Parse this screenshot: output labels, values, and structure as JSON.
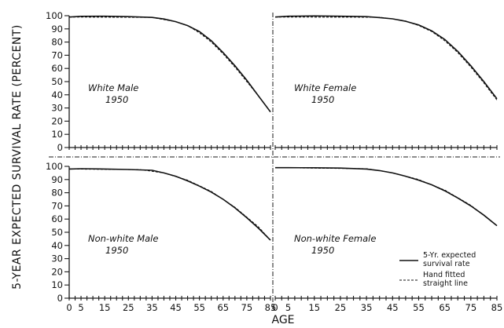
{
  "chart_data": {
    "type": "line",
    "ylabel": "5-YEAR EXPECTED SURVIVAL RATE (PERCENT)",
    "xlabel": "AGE",
    "x_ticks": [
      "0",
      "5",
      "15",
      "25",
      "35",
      "45",
      "55",
      "65",
      "75",
      "85"
    ],
    "y_ticks": [
      "0",
      "10",
      "20",
      "30",
      "40",
      "50",
      "60",
      "70",
      "80",
      "90",
      "100"
    ],
    "xlim": [
      0,
      85
    ],
    "ylim": [
      0,
      100
    ],
    "legend": {
      "placement": "bottom-right of lower-right panel",
      "entries": [
        {
          "label": "5-Yr. expected survival rate",
          "line_1": "5-Yr. expected",
          "line_2": "survival rate",
          "style": "solid"
        },
        {
          "label": "Hand fitted straight line",
          "line_1": "Hand fitted",
          "line_2": "straight line",
          "style": "dashed"
        }
      ]
    },
    "panels": [
      {
        "title_line_1": "White Male",
        "title_line_2": "1950",
        "series": [
          {
            "name": "5-Yr. expected survival rate",
            "style": "solid",
            "x": [
              0,
              5,
              15,
              25,
              35,
              40,
              45,
              50,
              55,
              60,
              65,
              70,
              75,
              80,
              85
            ],
            "y": [
              99,
              99.5,
              99.6,
              99.3,
              98.7,
              97.5,
              95.5,
              92.5,
              88,
              81,
              72,
              62,
              51,
              39,
              27
            ]
          },
          {
            "name": "Hand fitted straight line",
            "style": "dashed",
            "x": [
              0,
              35,
              40,
              45,
              50,
              55,
              60,
              65,
              70,
              75,
              80,
              85
            ],
            "y": [
              99,
              98.7,
              97,
              95.5,
              92.5,
              87,
              80,
              71,
              61,
              50,
              39,
              27
            ]
          }
        ]
      },
      {
        "title_line_1": "White Female",
        "title_line_2": "1950",
        "series": [
          {
            "name": "5-Yr. expected survival rate",
            "style": "solid",
            "x": [
              0,
              5,
              15,
              25,
              35,
              40,
              45,
              50,
              55,
              60,
              65,
              70,
              75,
              80,
              85
            ],
            "y": [
              99,
              99.6,
              99.8,
              99.6,
              99.3,
              98.6,
              97.6,
              95.8,
              93,
              88.5,
              82,
              73,
              62,
              50,
              37
            ]
          },
          {
            "name": "Hand fitted straight line",
            "style": "dashed",
            "x": [
              0,
              40,
              45,
              50,
              55,
              60,
              65,
              70,
              75,
              80,
              85
            ],
            "y": [
              99,
              98.8,
              97.6,
              96,
              92.5,
              88,
              81,
              72,
              61,
              49,
              36
            ]
          }
        ]
      },
      {
        "title_line_1": "Non-white Male",
        "title_line_2": "1950",
        "series": [
          {
            "name": "5-Yr. expected survival rate",
            "style": "solid",
            "x": [
              0,
              5,
              15,
              25,
              35,
              40,
              45,
              50,
              55,
              60,
              65,
              70,
              75,
              80,
              85
            ],
            "y": [
              98,
              98.2,
              98,
              97.6,
              97,
              95,
              92.5,
              89,
              85,
              80.5,
              75,
              68.5,
              61,
              53,
              44
            ]
          },
          {
            "name": "Hand fitted straight line",
            "style": "dashed",
            "x": [
              0,
              30,
              40,
              50,
              60,
              70,
              80,
              85
            ],
            "y": [
              98,
              97.5,
              95,
              89.5,
              81,
              69,
              54,
              44
            ]
          }
        ]
      },
      {
        "title_line_1": "Non-white Female",
        "title_line_2": "1950",
        "series": [
          {
            "name": "5-Yr. expected survival rate",
            "style": "solid",
            "x": [
              0,
              5,
              15,
              25,
              35,
              40,
              45,
              50,
              55,
              60,
              65,
              70,
              75,
              80,
              85
            ],
            "y": [
              99,
              99,
              98.9,
              98.7,
              98,
              96.8,
              95,
              92.5,
              89.5,
              86,
              81.5,
              76,
              70,
              63,
              55
            ]
          },
          {
            "name": "Hand fitted straight line",
            "style": "dashed",
            "x": [
              0,
              35,
              45,
              55,
              65,
              75,
              85
            ],
            "y": [
              99,
              98.2,
              95.2,
              90,
              82,
              70.5,
              55
            ]
          }
        ]
      }
    ]
  }
}
